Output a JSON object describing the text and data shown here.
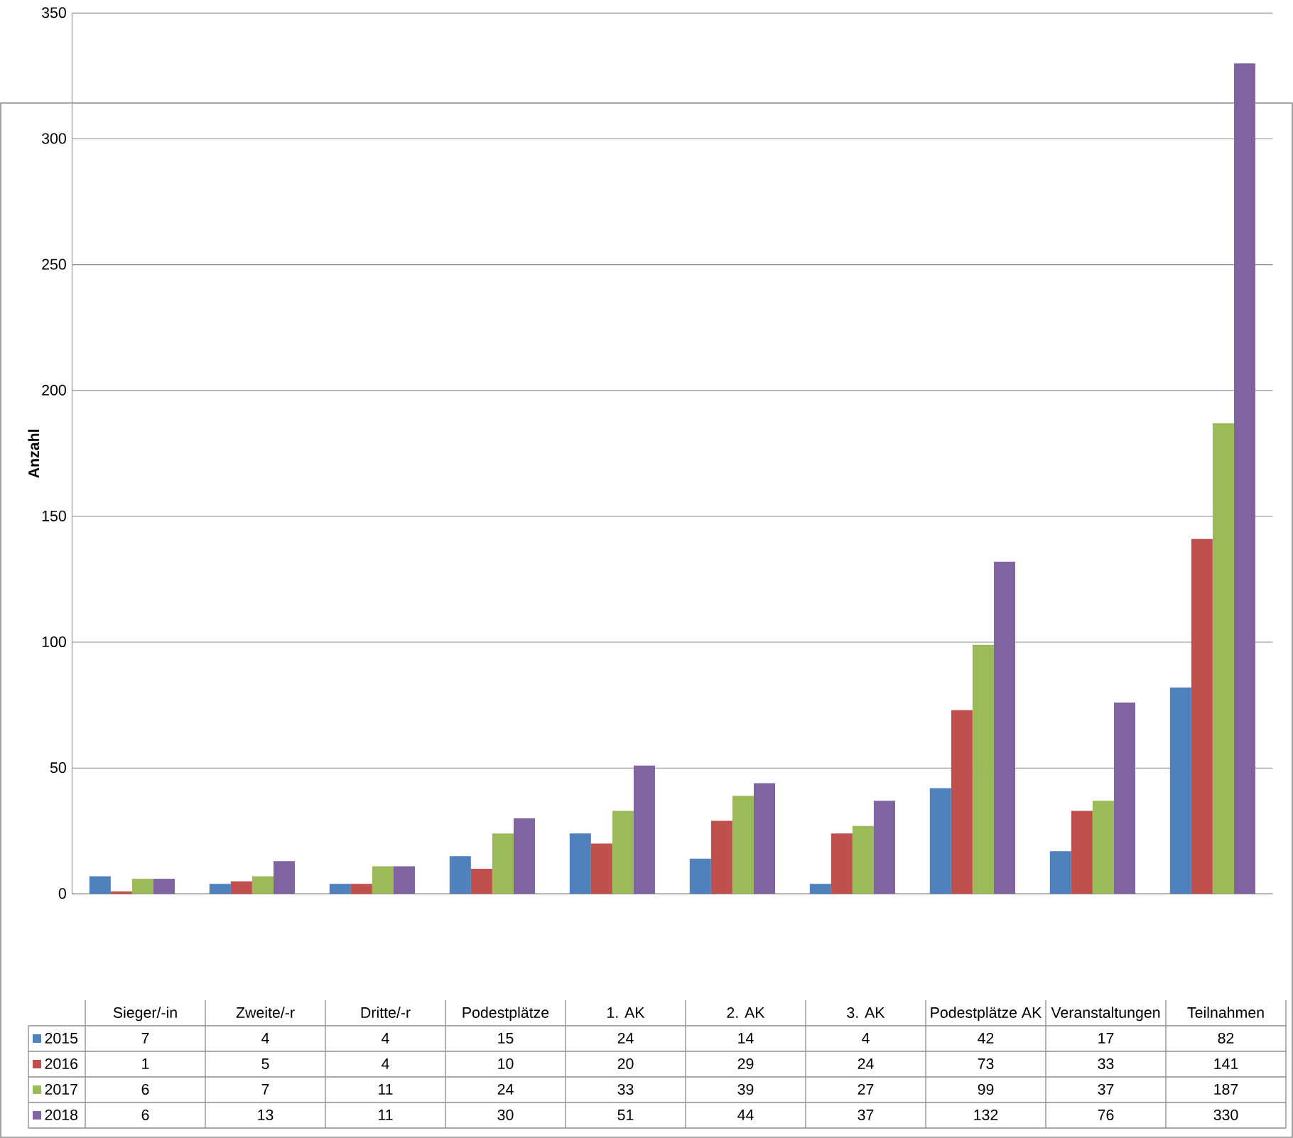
{
  "chart_data": {
    "type": "bar",
    "ylabel": "Anzahl",
    "categories": [
      "Sieger/-in",
      "Zweite/-r",
      "Dritte/-r",
      "Podestplätze",
      "1. AK",
      "2. AK",
      "3. AK",
      "Podestplätze AK",
      "Veranstaltungen",
      "Teilnahmen"
    ],
    "series": [
      {
        "name": "2015",
        "color": "#4f81bd",
        "values": [
          7,
          4,
          4,
          15,
          24,
          14,
          4,
          42,
          17,
          82
        ]
      },
      {
        "name": "2016",
        "color": "#c0504d",
        "values": [
          1,
          5,
          4,
          10,
          20,
          29,
          24,
          73,
          33,
          141
        ]
      },
      {
        "name": "2017",
        "color": "#9bbb59",
        "values": [
          6,
          7,
          11,
          24,
          33,
          39,
          27,
          99,
          37,
          187
        ]
      },
      {
        "name": "2018",
        "color": "#8064a2",
        "values": [
          6,
          13,
          11,
          30,
          51,
          44,
          37,
          132,
          76,
          330
        ]
      }
    ],
    "ylim": [
      0,
      350
    ],
    "yticks": [
      0,
      50,
      100,
      150,
      200,
      250,
      300,
      350
    ],
    "grid": "y",
    "legend": "left",
    "data_labels": true
  }
}
